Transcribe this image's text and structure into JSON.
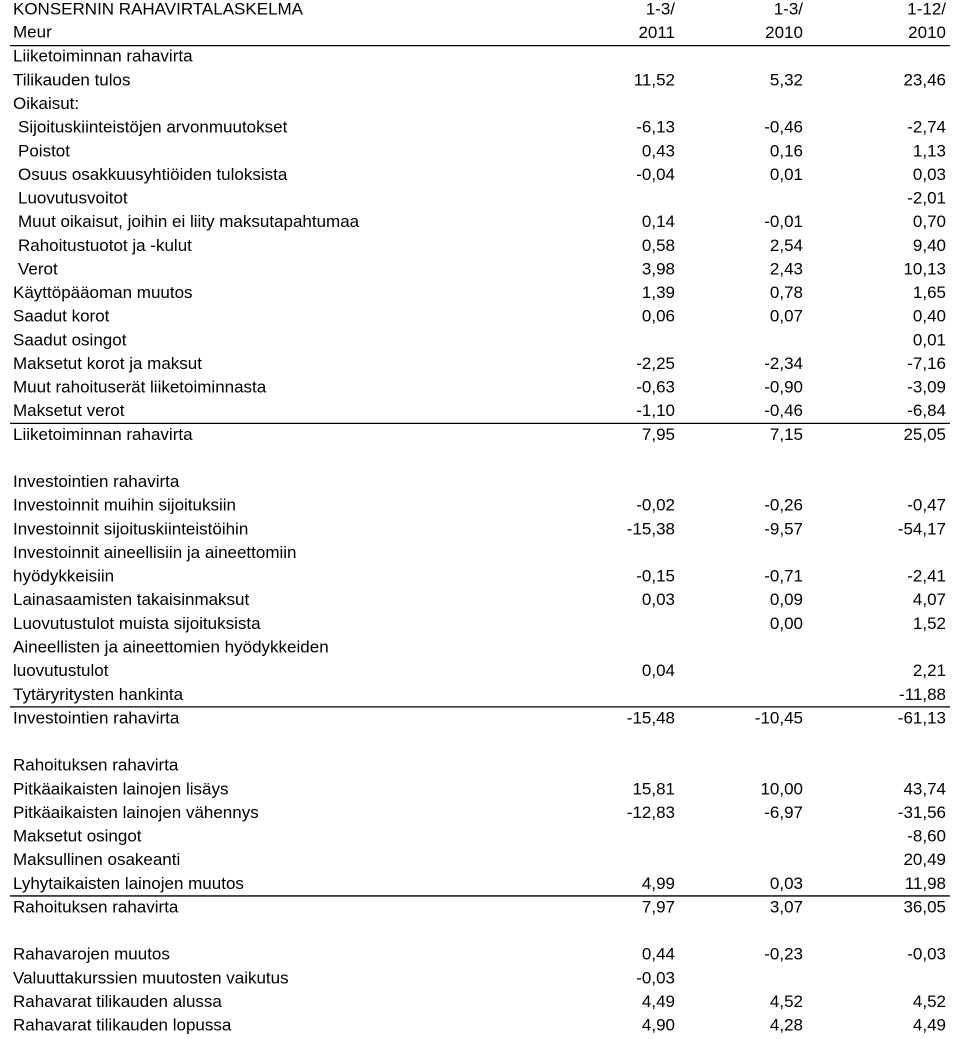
{
  "header": {
    "title": "KONSERNIN RAHAVIRTALASKELMA",
    "unit": "Meur",
    "columns": [
      {
        "line1": "1-3/",
        "line2": "2011"
      },
      {
        "line1": "1-3/",
        "line2": "2010"
      },
      {
        "line1": "1-12/",
        "line2": "2010"
      }
    ]
  },
  "sections": [
    {
      "rows": [
        {
          "label": "Liiketoiminnan rahavirta",
          "values": [
            null,
            null,
            null
          ]
        },
        {
          "label": "Tilikauden tulos",
          "values": [
            "11,52",
            "5,32",
            "23,46"
          ]
        },
        {
          "label": "Oikaisut:",
          "values": [
            null,
            null,
            null
          ]
        },
        {
          "label": "Sijoituskiinteistöjen arvonmuutokset",
          "indent": true,
          "values": [
            "-6,13",
            "-0,46",
            "-2,74"
          ]
        },
        {
          "label": "Poistot",
          "indent": true,
          "values": [
            "0,43",
            "0,16",
            "1,13"
          ]
        },
        {
          "label": "Osuus osakkuusyhtiöiden tuloksista",
          "indent": true,
          "values": [
            "-0,04",
            "0,01",
            "0,03"
          ]
        },
        {
          "label": "Luovutusvoitot",
          "indent": true,
          "values": [
            null,
            null,
            "-2,01"
          ]
        },
        {
          "label": "Muut oikaisut, joihin ei liity maksutapahtumaa",
          "indent": true,
          "values": [
            "0,14",
            "-0,01",
            "0,70"
          ]
        },
        {
          "label": "Rahoitustuotot ja -kulut",
          "indent": true,
          "values": [
            "0,58",
            "2,54",
            "9,40"
          ]
        },
        {
          "label": "Verot",
          "indent": true,
          "values": [
            "3,98",
            "2,43",
            "10,13"
          ]
        },
        {
          "label": "Käyttöpääoman muutos",
          "values": [
            "1,39",
            "0,78",
            "1,65"
          ]
        },
        {
          "label": "Saadut korot",
          "values": [
            "0,06",
            "0,07",
            "0,40"
          ]
        },
        {
          "label": "Saadut osingot",
          "values": [
            null,
            null,
            "0,01"
          ]
        },
        {
          "label": "Maksetut korot ja maksut",
          "values": [
            "-2,25",
            "-2,34",
            "-7,16"
          ]
        },
        {
          "label": "Muut rahoituserät liiketoiminnasta",
          "values": [
            "-0,63",
            "-0,90",
            "-3,09"
          ]
        },
        {
          "label": "Maksetut verot",
          "values": [
            "-1,10",
            "-0,46",
            "-6,84"
          ]
        },
        {
          "label": "Liiketoiminnan rahavirta",
          "total": true,
          "values": [
            "7,95",
            "7,15",
            "25,05"
          ]
        }
      ]
    },
    {
      "rows": [
        {
          "label": "Investointien rahavirta",
          "values": [
            null,
            null,
            null
          ]
        },
        {
          "label": "Investoinnit muihin sijoituksiin",
          "values": [
            "-0,02",
            "-0,26",
            "-0,47"
          ]
        },
        {
          "label": "Investoinnit sijoituskiinteistöihin",
          "values": [
            "-15,38",
            "-9,57",
            "-54,17"
          ]
        },
        {
          "label": "Investoinnit aineellisiin ja aineettomiin",
          "values": [
            null,
            null,
            null
          ]
        },
        {
          "label": "hyödykkeisiin",
          "values": [
            "-0,15",
            "-0,71",
            "-2,41"
          ]
        },
        {
          "label": "Lainasaamisten takaisinmaksut",
          "values": [
            "0,03",
            "0,09",
            "4,07"
          ]
        },
        {
          "label": "Luovutustulot muista sijoituksista",
          "values": [
            null,
            "0,00",
            "1,52"
          ]
        },
        {
          "label": "Aineellisten ja aineettomien hyödykkeiden",
          "values": [
            null,
            null,
            null
          ]
        },
        {
          "label": "luovutustulot",
          "values": [
            "0,04",
            null,
            "2,21"
          ]
        },
        {
          "label": "Tytäryritysten hankinta",
          "values": [
            null,
            null,
            "-11,88"
          ]
        },
        {
          "label": "Investointien rahavirta",
          "total": true,
          "values": [
            "-15,48",
            "-10,45",
            "-61,13"
          ]
        }
      ]
    },
    {
      "rows": [
        {
          "label": "Rahoituksen rahavirta",
          "values": [
            null,
            null,
            null
          ]
        },
        {
          "label": "Pitkäaikaisten lainojen lisäys",
          "values": [
            "15,81",
            "10,00",
            "43,74"
          ]
        },
        {
          "label": "Pitkäaikaisten lainojen vähennys",
          "values": [
            "-12,83",
            "-6,97",
            "-31,56"
          ]
        },
        {
          "label": "Maksetut osingot",
          "values": [
            null,
            null,
            "-8,60"
          ]
        },
        {
          "label": "Maksullinen osakeanti",
          "values": [
            null,
            null,
            "20,49"
          ]
        },
        {
          "label": "Lyhytaikaisten lainojen muutos",
          "values": [
            "4,99",
            "0,03",
            "11,98"
          ]
        },
        {
          "label": "Rahoituksen rahavirta",
          "total": true,
          "values": [
            "7,97",
            "3,07",
            "36,05"
          ]
        }
      ]
    },
    {
      "rows": [
        {
          "label": "Rahavarojen muutos",
          "values": [
            "0,44",
            "-0,23",
            "-0,03"
          ]
        },
        {
          "label": "Valuuttakurssien muutosten vaikutus",
          "values": [
            "-0,03",
            null,
            null
          ]
        },
        {
          "label": "Rahavarat tilikauden alussa",
          "values": [
            "4,49",
            "4,52",
            "4,52"
          ]
        },
        {
          "label": "Rahavarat tilikauden lopussa",
          "values": [
            "4,90",
            "4,28",
            "4,49"
          ]
        }
      ]
    }
  ]
}
